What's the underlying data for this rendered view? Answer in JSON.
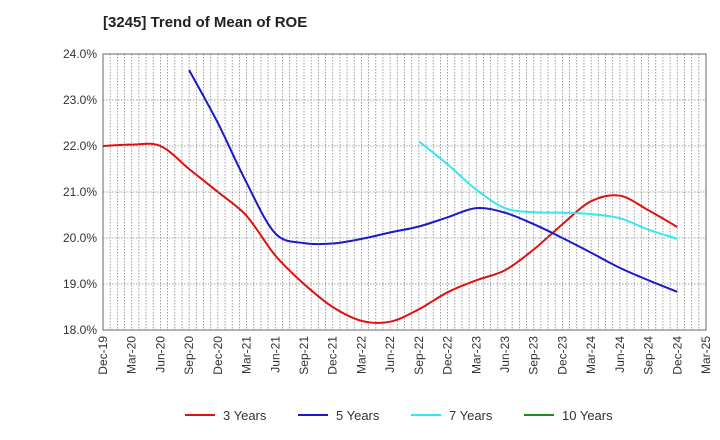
{
  "chart_data": {
    "type": "line",
    "title": "[3245]  Trend of Mean of ROE",
    "xlabel": "",
    "ylabel": "",
    "ylim": [
      18.0,
      24.0
    ],
    "y_ticks": [
      18.0,
      19.0,
      20.0,
      21.0,
      22.0,
      23.0,
      24.0
    ],
    "y_tick_labels": [
      "18.0%",
      "19.0%",
      "20.0%",
      "21.0%",
      "22.0%",
      "23.0%",
      "24.0%"
    ],
    "categories": [
      "Dec-19",
      "Mar-20",
      "Jun-20",
      "Sep-20",
      "Dec-20",
      "Mar-21",
      "Jun-21",
      "Sep-21",
      "Dec-21",
      "Mar-22",
      "Jun-22",
      "Sep-22",
      "Dec-22",
      "Mar-23",
      "Jun-23",
      "Sep-23",
      "Dec-23",
      "Mar-24",
      "Jun-24",
      "Sep-24",
      "Dec-24",
      "Mar-25"
    ],
    "grid": true,
    "legend_position": "bottom",
    "series": [
      {
        "name": "3 Years",
        "color": "#dd1111",
        "values": [
          22.0,
          22.03,
          22.0,
          21.5,
          21.0,
          20.48,
          19.62,
          19.0,
          18.5,
          18.2,
          18.18,
          18.45,
          18.82,
          19.08,
          19.3,
          19.75,
          20.3,
          20.8,
          20.92,
          20.6,
          20.24,
          null
        ]
      },
      {
        "name": "5 Years",
        "color": "#1a1acc",
        "values": [
          null,
          null,
          null,
          23.65,
          22.5,
          21.2,
          20.1,
          19.89,
          19.88,
          19.98,
          20.12,
          20.25,
          20.45,
          20.65,
          20.55,
          20.3,
          20.0,
          19.68,
          19.35,
          19.08,
          18.83,
          null
        ]
      },
      {
        "name": "7 Years",
        "color": "#33e8f0",
        "values": [
          null,
          null,
          null,
          null,
          null,
          null,
          null,
          null,
          null,
          null,
          null,
          22.1,
          21.6,
          21.05,
          20.65,
          20.56,
          20.55,
          20.52,
          20.43,
          20.18,
          19.98,
          null
        ]
      },
      {
        "name": "10 Years",
        "color": "#1d8c1d",
        "values": [
          null,
          null,
          null,
          null,
          null,
          null,
          null,
          null,
          null,
          null,
          null,
          null,
          null,
          null,
          null,
          null,
          null,
          null,
          null,
          null,
          null,
          null
        ]
      }
    ]
  }
}
